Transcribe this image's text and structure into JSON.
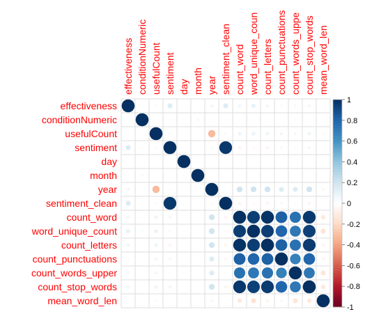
{
  "chart_data": {
    "type": "heatmap",
    "style": "circle",
    "layout": "full",
    "labels": [
      "effectiveness",
      "conditionNumeric",
      "usefulCount",
      "sentiment",
      "day",
      "month",
      "year",
      "sentiment_clean",
      "count_word",
      "word_unique_count",
      "count_letters",
      "count_punctuations",
      "count_words_upper",
      "count_stop_words",
      "mean_word_len"
    ],
    "column_labels": [
      "effectiveness",
      "conditionNumeric",
      "usefulCount",
      "sentiment",
      "day",
      "month",
      "year",
      "sentiment_clean",
      "count_word",
      "word_unique_coun",
      "count_letters",
      "count_punctuations",
      "count_words_uppe",
      "count_stop_words",
      "mean_word_len"
    ],
    "matrix": [
      [
        1,
        0.02,
        0.03,
        0.15,
        0.01,
        0.01,
        0.06,
        0.15,
        0.06,
        0.1,
        0.06,
        0.04,
        0.05,
        0.06,
        0.01
      ],
      [
        0.02,
        1,
        0.01,
        -0.03,
        0.01,
        -0.05,
        0.02,
        -0.03,
        0.02,
        0.03,
        0.02,
        0.01,
        0.02,
        0.02,
        -0.02
      ],
      [
        0.03,
        0.01,
        1,
        0.04,
        0.01,
        0.01,
        -0.32,
        0.04,
        0.08,
        0.09,
        0.08,
        0.06,
        0.06,
        0.08,
        -0.04
      ],
      [
        0.15,
        -0.03,
        0.04,
        1,
        0.01,
        0.01,
        0.03,
        0.97,
        -0.06,
        -0.04,
        -0.06,
        -0.05,
        -0.03,
        -0.06,
        0.02
      ],
      [
        0.01,
        0.01,
        0.01,
        0.01,
        1,
        0.02,
        0.01,
        0.01,
        0.01,
        0.01,
        0.01,
        0.01,
        0.01,
        0.01,
        0.01
      ],
      [
        0.01,
        -0.05,
        0.01,
        0.01,
        0.02,
        1,
        0.01,
        0.01,
        0.01,
        0.01,
        0.01,
        0.01,
        0.01,
        0.01,
        0.01
      ],
      [
        0.06,
        0.02,
        -0.32,
        0.03,
        0.01,
        0.01,
        1,
        0.03,
        0.2,
        0.2,
        0.2,
        0.15,
        0.15,
        0.2,
        -0.05
      ],
      [
        0.15,
        -0.03,
        0.04,
        0.97,
        0.01,
        0.01,
        0.03,
        1,
        -0.06,
        -0.04,
        -0.06,
        -0.05,
        -0.03,
        -0.06,
        0.02
      ],
      [
        0.06,
        0.02,
        0.08,
        -0.06,
        0.01,
        0.01,
        0.2,
        -0.06,
        1,
        0.95,
        0.99,
        0.82,
        0.75,
        0.97,
        -0.12
      ],
      [
        0.1,
        0.03,
        0.09,
        -0.04,
        0.01,
        0.01,
        0.2,
        -0.04,
        0.95,
        1,
        0.95,
        0.8,
        0.72,
        0.94,
        -0.15
      ],
      [
        0.06,
        0.02,
        0.08,
        -0.06,
        0.01,
        0.01,
        0.2,
        -0.06,
        0.99,
        0.95,
        1,
        0.82,
        0.75,
        0.96,
        -0.06
      ],
      [
        0.04,
        0.01,
        0.06,
        -0.05,
        0.01,
        0.01,
        0.15,
        -0.05,
        0.82,
        0.8,
        0.82,
        1,
        0.68,
        0.8,
        -0.05
      ],
      [
        0.05,
        0.02,
        0.06,
        -0.03,
        0.01,
        0.01,
        0.15,
        -0.03,
        0.75,
        0.72,
        0.75,
        0.68,
        1,
        0.72,
        -0.14
      ],
      [
        0.06,
        0.02,
        0.08,
        -0.06,
        0.01,
        0.01,
        0.2,
        -0.06,
        0.97,
        0.94,
        0.96,
        0.8,
        0.72,
        1,
        -0.12
      ],
      [
        0.01,
        -0.02,
        -0.04,
        0.02,
        0.01,
        0.01,
        -0.05,
        0.02,
        -0.12,
        -0.15,
        -0.06,
        -0.05,
        -0.14,
        -0.12,
        1
      ]
    ],
    "colorbar": {
      "range": [
        -1,
        1
      ],
      "ticks": [
        "1",
        "0.8",
        "0.6",
        "0.4",
        "0.2",
        "0",
        "-0.2",
        "-0.4",
        "-0.6",
        "-0.8",
        "-1"
      ],
      "tick_values": [
        1,
        0.8,
        0.6,
        0.4,
        0.2,
        0,
        -0.2,
        -0.4,
        -0.6,
        -0.8,
        -1
      ],
      "colors": [
        "#67001F",
        "#B2182B",
        "#D6604D",
        "#F4A582",
        "#FDDBC7",
        "#FFFFFF",
        "#D1E5F0",
        "#92C5DE",
        "#4393C3",
        "#2166AC",
        "#053061"
      ]
    },
    "grid": true,
    "label_color": "#FF0000"
  }
}
